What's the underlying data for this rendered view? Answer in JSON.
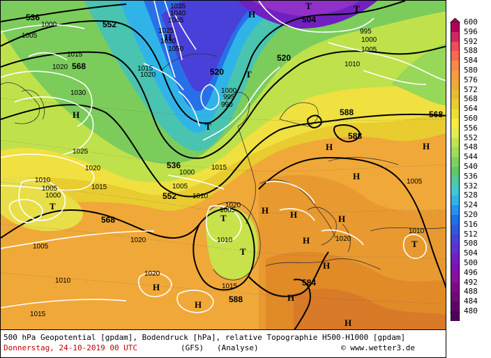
{
  "footer": {
    "caption": "500 hPa Geopotential [gpdam], Bodendruck [hPa], relative Topographie H500-H1000 [gpdam]",
    "date": "Donnerstag, 24-10-2019  00 UTC",
    "model": "(GFS)",
    "analysis": "(Analyse)",
    "credit": "© www.wetter3.de"
  },
  "legend": {
    "values": [
      "600",
      "596",
      "592",
      "588",
      "584",
      "580",
      "576",
      "572",
      "568",
      "564",
      "560",
      "556",
      "552",
      "548",
      "544",
      "540",
      "536",
      "532",
      "528",
      "524",
      "520",
      "516",
      "512",
      "508",
      "504",
      "500",
      "496",
      "492",
      "488",
      "484",
      "480"
    ],
    "colors": [
      "#b00058",
      "#d02860",
      "#f04a5c",
      "#f86a50",
      "#f88848",
      "#f89a40",
      "#f0aa38",
      "#e8bc30",
      "#e8cc30",
      "#f0dc38",
      "#f8ec40",
      "#e0ee50",
      "#c0e450",
      "#a0dc58",
      "#80d060",
      "#60c868",
      "#50c8a0",
      "#40c8d0",
      "#30b4e8",
      "#2890f0",
      "#2070e8",
      "#3058e0",
      "#4840d8",
      "#6030d0",
      "#7020c0",
      "#8010b0",
      "#8a109c",
      "#800888",
      "#700878",
      "#600468",
      "#500058"
    ]
  },
  "geo_labels": [
    "536",
    "552",
    "568",
    "520",
    "504",
    "588",
    "568",
    "588",
    "536",
    "552",
    "568",
    "584",
    "588",
    "520"
  ],
  "pressure_labels": [
    "1000",
    "1005",
    "1015",
    "1020",
    "1030",
    "1025",
    "1020",
    "1010",
    "1005",
    "1000",
    "1015",
    "1005",
    "1010",
    "1015",
    "1020",
    "1020",
    "1015",
    "1010",
    "1005",
    "1000",
    "995",
    "990",
    "1000",
    "1005",
    "1010",
    "1015",
    "1020",
    "1025",
    "1030",
    "1035",
    "1040",
    "1045",
    "1050",
    "995",
    "1000",
    "1005",
    "1010",
    "1020",
    "1005",
    "1010",
    "1015",
    "1020"
  ],
  "centers": [
    "H",
    "H",
    "T",
    "H",
    "T",
    "T",
    "T",
    "H",
    "H",
    "H",
    "H",
    "T",
    "H",
    "T",
    "H",
    "T",
    "H",
    "H",
    "H",
    "H",
    "T",
    "H",
    "H"
  ]
}
